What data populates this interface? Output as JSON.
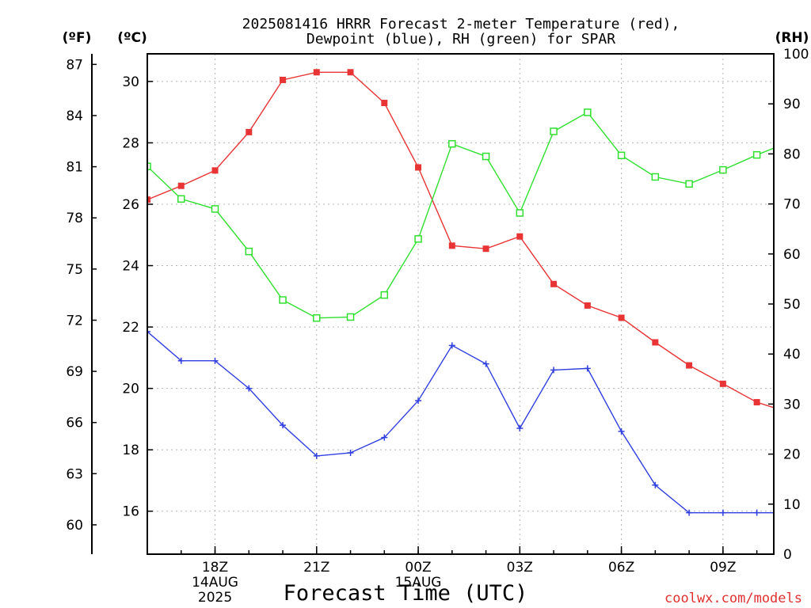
{
  "chart_data": {
    "type": "line",
    "title_line1": "2025081416 HRRR Forecast 2-meter Temperature (red),",
    "title_line2": "Dewpoint (blue), RH (green) for SPAR",
    "xlabel": "Forecast Time (UTC)",
    "credit": "coolwx.com/models",
    "units": {
      "fahrenheit": "(ºF)",
      "celsius": "(ºC)",
      "rh": "(RH)"
    },
    "x_hours": [
      0,
      1,
      2,
      3,
      4,
      5,
      6,
      7,
      8,
      9,
      10,
      11,
      12,
      13,
      14,
      15,
      16,
      17,
      18,
      19
    ],
    "x_ticks": [
      {
        "hour": 2,
        "label": "18Z",
        "sub1": "14AUG",
        "sub2": "2025"
      },
      {
        "hour": 5,
        "label": "21Z",
        "sub1": "",
        "sub2": ""
      },
      {
        "hour": 8,
        "label": "00Z",
        "sub1": "15AUG",
        "sub2": ""
      },
      {
        "hour": 11,
        "label": "03Z",
        "sub1": "",
        "sub2": ""
      },
      {
        "hour": 14,
        "label": "06Z",
        "sub1": "",
        "sub2": ""
      },
      {
        "hour": 17,
        "label": "09Z",
        "sub1": "",
        "sub2": ""
      }
    ],
    "xlim": [
      0,
      18.5
    ],
    "celsius_axis": {
      "ylim": [
        14.6,
        30.9
      ],
      "ticks": [
        16,
        18,
        20,
        22,
        24,
        26,
        28,
        30
      ]
    },
    "fahrenheit_axis": {
      "ticks": [
        60,
        63,
        66,
        69,
        72,
        75,
        78,
        81,
        84,
        87
      ]
    },
    "rh_axis": {
      "ylim": [
        0,
        100
      ],
      "ticks": [
        0,
        10,
        20,
        30,
        40,
        50,
        60,
        70,
        80,
        90,
        100
      ]
    },
    "series": [
      {
        "key": "temperature",
        "axis": "celsius",
        "color": "#e83434",
        "marker": "filled-square",
        "values": [
          26.15,
          26.6,
          27.1,
          28.35,
          30.05,
          30.3,
          30.3,
          29.3,
          27.2,
          24.65,
          24.55,
          24.95,
          23.4,
          22.7,
          22.3,
          21.5,
          20.75,
          20.15,
          19.55,
          19.2
        ]
      },
      {
        "key": "dewpoint",
        "axis": "celsius",
        "color": "#2f3fe0",
        "marker": "plus",
        "values": [
          21.85,
          20.9,
          20.9,
          20.0,
          18.8,
          17.8,
          17.9,
          18.4,
          19.6,
          21.4,
          20.8,
          18.7,
          20.6,
          20.65,
          18.6,
          16.85,
          15.95,
          15.95,
          15.95,
          15.95
        ]
      },
      {
        "key": "rh",
        "axis": "rh",
        "color": "#2fe02f",
        "marker": "open-square",
        "values": [
          77.5,
          71.0,
          69.0,
          60.5,
          50.8,
          47.2,
          47.4,
          51.8,
          63.0,
          82.0,
          79.5,
          68.2,
          84.5,
          88.3,
          79.7,
          75.4,
          74.0,
          76.8,
          79.8,
          82.5
        ]
      }
    ]
  }
}
